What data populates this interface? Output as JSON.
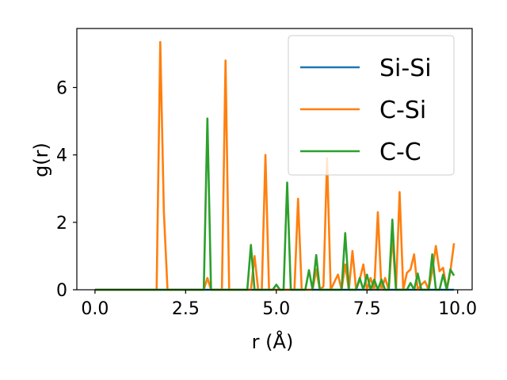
{
  "chart_data": {
    "type": "line",
    "xlabel": "r (Å)",
    "ylabel": "g(r)",
    "xlim": [
      -0.5,
      10.4
    ],
    "ylim": [
      0,
      7.75
    ],
    "xticks": [
      0.0,
      2.5,
      5.0,
      7.5,
      10.0
    ],
    "xtick_labels": [
      "0.0",
      "2.5",
      "5.0",
      "7.5",
      "10.0"
    ],
    "yticks": [
      0,
      2,
      4,
      6
    ],
    "ytick_labels": [
      "0",
      "2",
      "4",
      "6"
    ],
    "grid": false,
    "legend_position": "upper right",
    "series": [
      {
        "name": "Si-Si",
        "color": "#1f77b4",
        "points": [
          [
            0.0,
            0
          ],
          [
            9.9,
            0
          ]
        ]
      },
      {
        "name": "C-Si",
        "color": "#ff7f0e",
        "points": [
          [
            0.0,
            0
          ],
          [
            1.7,
            0
          ],
          [
            1.8,
            7.35
          ],
          [
            1.9,
            2.3
          ],
          [
            2.0,
            0
          ],
          [
            3.0,
            0
          ],
          [
            3.1,
            0.35
          ],
          [
            3.2,
            0
          ],
          [
            3.5,
            0
          ],
          [
            3.6,
            6.8
          ],
          [
            3.7,
            0
          ],
          [
            4.3,
            0
          ],
          [
            4.4,
            1.0
          ],
          [
            4.5,
            0
          ],
          [
            4.6,
            0
          ],
          [
            4.7,
            4.0
          ],
          [
            4.8,
            0
          ],
          [
            5.5,
            0
          ],
          [
            5.6,
            2.7
          ],
          [
            5.7,
            0
          ],
          [
            6.0,
            0
          ],
          [
            6.1,
            0.6
          ],
          [
            6.2,
            0
          ],
          [
            6.3,
            0.1
          ],
          [
            6.4,
            3.9
          ],
          [
            6.5,
            0
          ],
          [
            6.7,
            0.45
          ],
          [
            6.8,
            0
          ],
          [
            6.9,
            0.75
          ],
          [
            7.0,
            0
          ],
          [
            7.1,
            1.15
          ],
          [
            7.2,
            0
          ],
          [
            7.3,
            0.3
          ],
          [
            7.4,
            0.75
          ],
          [
            7.5,
            0
          ],
          [
            7.6,
            0.35
          ],
          [
            7.7,
            0
          ],
          [
            7.8,
            2.3
          ],
          [
            7.9,
            0
          ],
          [
            8.0,
            0.35
          ],
          [
            8.1,
            0
          ],
          [
            8.2,
            1.6
          ],
          [
            8.3,
            0
          ],
          [
            8.4,
            2.9
          ],
          [
            8.5,
            0
          ],
          [
            8.6,
            0.5
          ],
          [
            8.7,
            0.6
          ],
          [
            8.8,
            1.05
          ],
          [
            8.9,
            0
          ],
          [
            9.0,
            0.15
          ],
          [
            9.1,
            0.25
          ],
          [
            9.2,
            0
          ],
          [
            9.3,
            0.55
          ],
          [
            9.4,
            1.3
          ],
          [
            9.5,
            0.55
          ],
          [
            9.6,
            0.65
          ],
          [
            9.7,
            0
          ],
          [
            9.8,
            0.55
          ],
          [
            9.9,
            1.38
          ]
        ]
      },
      {
        "name": "C-C",
        "color": "#2ca02c",
        "points": [
          [
            0.0,
            0
          ],
          [
            3.0,
            0
          ],
          [
            3.1,
            5.08
          ],
          [
            3.2,
            0
          ],
          [
            4.2,
            0
          ],
          [
            4.3,
            1.33
          ],
          [
            4.4,
            0
          ],
          [
            4.9,
            0
          ],
          [
            5.0,
            0.15
          ],
          [
            5.1,
            0
          ],
          [
            5.2,
            0
          ],
          [
            5.3,
            3.18
          ],
          [
            5.4,
            0
          ],
          [
            5.8,
            0
          ],
          [
            5.9,
            0.58
          ],
          [
            6.0,
            0
          ],
          [
            6.1,
            1.03
          ],
          [
            6.2,
            0
          ],
          [
            6.8,
            0
          ],
          [
            6.9,
            1.68
          ],
          [
            7.0,
            0
          ],
          [
            7.2,
            0
          ],
          [
            7.3,
            0.35
          ],
          [
            7.4,
            0
          ],
          [
            7.5,
            0.45
          ],
          [
            7.6,
            0
          ],
          [
            7.7,
            0.3
          ],
          [
            7.8,
            0
          ],
          [
            7.9,
            0.3
          ],
          [
            8.0,
            0
          ],
          [
            8.1,
            0
          ],
          [
            8.2,
            2.08
          ],
          [
            8.3,
            0
          ],
          [
            8.6,
            0
          ],
          [
            8.7,
            0.2
          ],
          [
            8.8,
            0
          ],
          [
            8.9,
            0.48
          ],
          [
            9.0,
            0
          ],
          [
            9.2,
            0
          ],
          [
            9.3,
            1.05
          ],
          [
            9.4,
            0
          ],
          [
            9.5,
            0
          ],
          [
            9.6,
            0.45
          ],
          [
            9.7,
            0
          ],
          [
            9.8,
            0.6
          ],
          [
            9.9,
            0.42
          ]
        ]
      }
    ]
  }
}
